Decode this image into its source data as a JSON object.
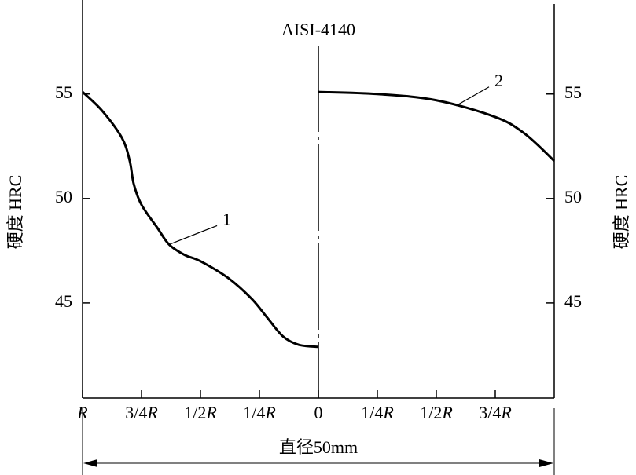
{
  "chart_data": {
    "type": "line",
    "title": "AISI-4140",
    "xlabel": "直径50mm",
    "ylabel": "硬度  HRC",
    "xlim": [
      -1,
      1
    ],
    "ylim": [
      40.45,
      59.5
    ],
    "xticks": [
      {
        "value": -1,
        "label": "R"
      },
      {
        "value": -0.75,
        "label": "3/4R"
      },
      {
        "value": -0.5,
        "label": "1/2R"
      },
      {
        "value": -0.25,
        "label": "1/4R"
      },
      0,
      {
        "value": 0.25,
        "label": "1/4R"
      },
      {
        "value": 0.5,
        "label": "1/2R"
      },
      {
        "value": 0.75,
        "label": "3/4R"
      }
    ],
    "yticks": [
      45,
      50,
      55
    ],
    "series": [
      {
        "name": "1",
        "color": "#000000",
        "x": [
          -1,
          -0.917,
          -0.833,
          -0.8,
          -0.783,
          -0.75,
          -0.683,
          -0.633,
          -0.567,
          -0.5,
          -0.383,
          -0.283,
          -0.217,
          -0.15,
          -0.083,
          0
        ],
        "values": [
          55.1,
          54.2,
          52.9,
          51.8,
          50.7,
          49.7,
          48.6,
          47.8,
          47.3,
          47.0,
          46.2,
          45.2,
          44.3,
          43.4,
          43.0,
          42.9
        ]
      },
      {
        "name": "2",
        "color": "#000000",
        "x": [
          0,
          0.25,
          0.5,
          0.75,
          0.875,
          1
        ],
        "values": [
          55.1,
          55.0,
          54.7,
          53.9,
          53.1,
          51.8
        ]
      }
    ]
  }
}
